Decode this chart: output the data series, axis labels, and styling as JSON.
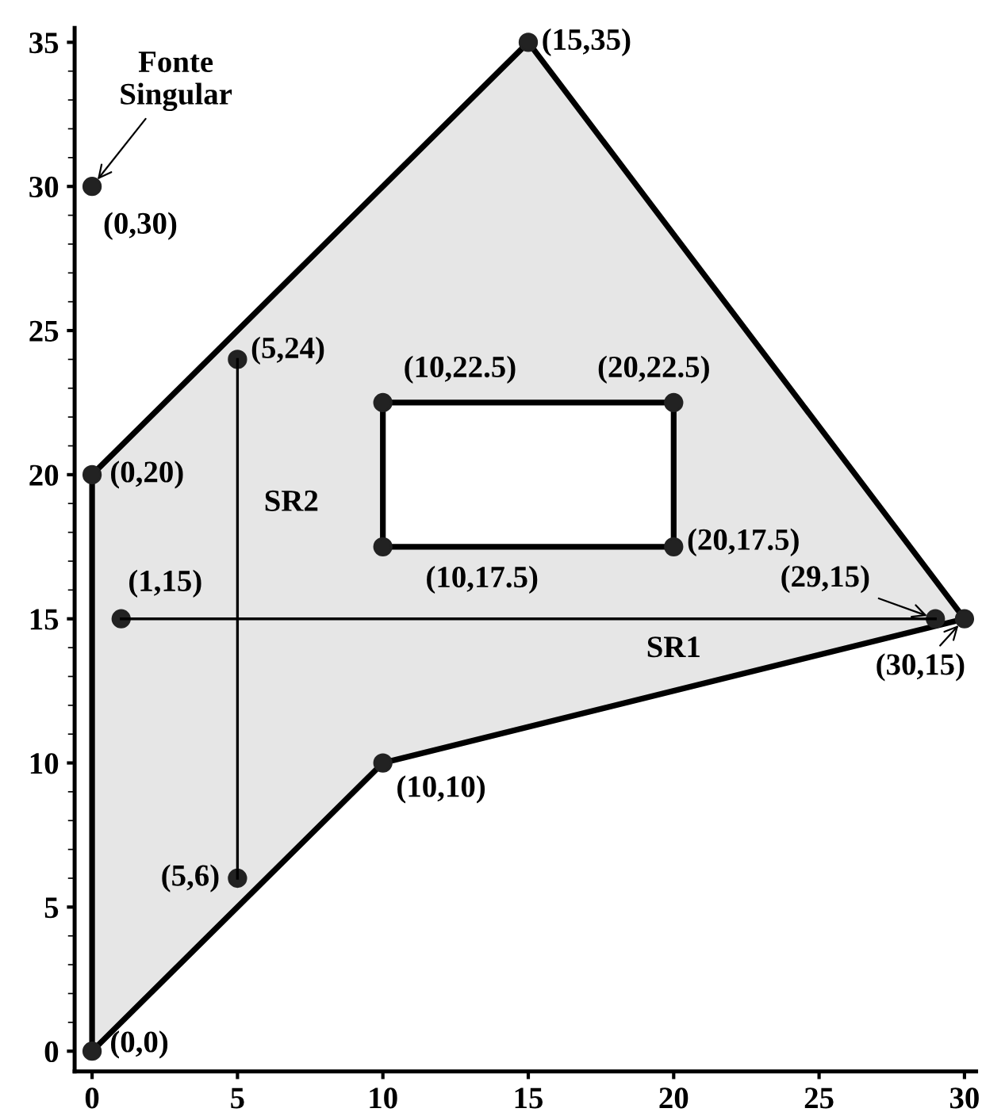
{
  "chart_data": {
    "type": "line",
    "xlim": [
      -0.6,
      30.4
    ],
    "ylim": [
      -0.7,
      35.5
    ],
    "xticks": [
      0,
      5,
      10,
      15,
      20,
      25,
      30
    ],
    "yticks": [
      0,
      5,
      10,
      15,
      20,
      25,
      30,
      35
    ],
    "series": [
      {
        "type": "area",
        "x": [
          0,
          0,
          15,
          30,
          10,
          0
        ],
        "values": [
          0,
          20,
          35,
          15,
          10,
          0
        ],
        "color": "#e6e6e6"
      },
      {
        "type": "area",
        "x": [
          10,
          10,
          20,
          20,
          10
        ],
        "values": [
          17.5,
          22.5,
          22.5,
          17.5,
          17.5
        ],
        "color": "#ffffff"
      },
      {
        "x": [
          1,
          29
        ],
        "values": [
          15,
          15
        ],
        "color": "#000000"
      },
      {
        "x": [
          5,
          5
        ],
        "values": [
          6,
          24
        ],
        "color": "#000000"
      },
      {
        "type": "scatter",
        "marker": "circle",
        "x": [
          0,
          0,
          15,
          30,
          10,
          0,
          10,
          10,
          20,
          20,
          1,
          29,
          5,
          5
        ],
        "values": [
          0,
          20,
          35,
          15,
          10,
          30,
          17.5,
          22.5,
          22.5,
          17.5,
          15,
          15,
          6,
          24
        ],
        "color": "#222222"
      }
    ],
    "annotations": [
      {
        "text": "(0,0)",
        "x": 0,
        "y": 0
      },
      {
        "text": "(0,20)",
        "x": 0,
        "y": 20
      },
      {
        "text": "(15,35)",
        "x": 15,
        "y": 35
      },
      {
        "text": "(30,15)",
        "x": 30,
        "y": 15
      },
      {
        "text": "(10,10)",
        "x": 10,
        "y": 10
      },
      {
        "text": "(0,30)",
        "x": 0,
        "y": 30
      },
      {
        "text": "(10,17.5)",
        "x": 10,
        "y": 17.5
      },
      {
        "text": "(10,22.5)",
        "x": 10,
        "y": 22.5
      },
      {
        "text": "(20,22.5)",
        "x": 20,
        "y": 22.5
      },
      {
        "text": "(20,17.5)",
        "x": 20,
        "y": 17.5
      },
      {
        "text": "(1,15)",
        "x": 1,
        "y": 15
      },
      {
        "text": "(29,15)",
        "x": 29,
        "y": 15
      },
      {
        "text": "(5,6)",
        "x": 5,
        "y": 6
      },
      {
        "text": "(5,24)",
        "x": 5,
        "y": 24
      },
      {
        "text": "Fonte\nSingular",
        "x": 0,
        "y": 30
      },
      {
        "text": "SR1",
        "x": 20,
        "y": 15
      },
      {
        "text": "SR2",
        "x": 5,
        "y": 19
      }
    ]
  }
}
